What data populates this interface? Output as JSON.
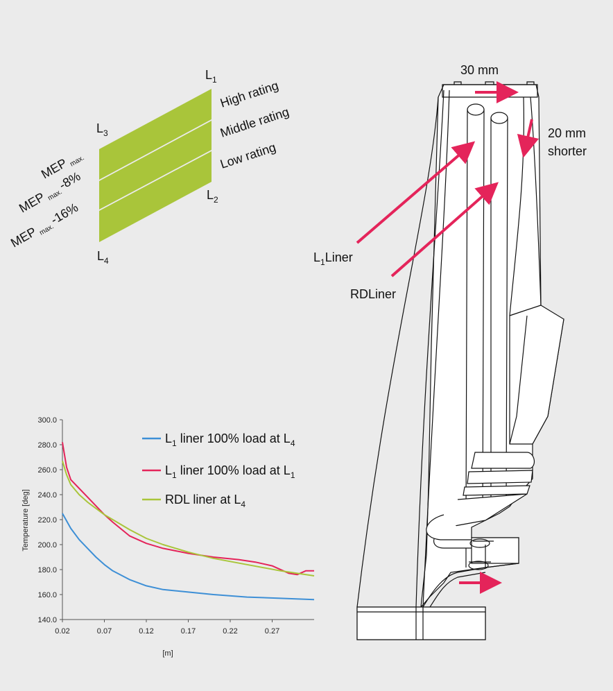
{
  "rating": {
    "corners": {
      "l1": "L",
      "l1_sub": "1",
      "l2": "L",
      "l2_sub": "2",
      "l3": "L",
      "l3_sub": "3",
      "l4": "L",
      "l4_sub": "4"
    },
    "bands": [
      "High rating",
      "Middle rating",
      "Low rating"
    ],
    "mep": [
      {
        "main": "MEP",
        "sub": "max.",
        "suffix": ""
      },
      {
        "main": "MEP",
        "sub": "max.",
        "suffix": "-8%"
      },
      {
        "main": "MEP",
        "sub": "max.",
        "suffix": "-16%"
      }
    ],
    "color": "#a9c53a"
  },
  "engine": {
    "width_label": "30 mm",
    "shorter_label_1": "20 mm",
    "shorter_label_2": "shorter",
    "l1_liner_main": "L",
    "l1_liner_sub": "1",
    "l1_liner_rest": "Liner",
    "rd_liner": "RDLiner",
    "arrow_color": "#e4245a"
  },
  "chart_data": {
    "type": "line",
    "xlabel": "[m]",
    "ylabel": "Temperature [deg]",
    "xlim": [
      0.02,
      0.32
    ],
    "ylim": [
      140,
      300
    ],
    "x_ticks": [
      "0.02",
      "0.07",
      "0.12",
      "0.17",
      "0.22",
      "0.27"
    ],
    "y_ticks": [
      "140.0",
      "160.0",
      "180.0",
      "200.0",
      "220.0",
      "240.0",
      "260.0",
      "280.0",
      "300.0"
    ],
    "legend_position": "top-right",
    "series": [
      {
        "legend_main": "L",
        "legend_sub": "1",
        "legend_mid": " liner 100% load at L",
        "legend_sub2": "4",
        "color": "#3d8fd6",
        "x": [
          0.02,
          0.03,
          0.04,
          0.05,
          0.06,
          0.07,
          0.08,
          0.1,
          0.12,
          0.14,
          0.17,
          0.2,
          0.24,
          0.28,
          0.32
        ],
        "y": [
          225,
          213,
          204,
          197,
          190,
          184,
          179,
          172,
          167,
          164,
          162,
          160,
          158,
          157,
          156
        ]
      },
      {
        "legend_main": "L",
        "legend_sub": "1",
        "legend_mid": " liner 100% load at L",
        "legend_sub2": "1",
        "color": "#e4245a",
        "x": [
          0.02,
          0.025,
          0.03,
          0.04,
          0.05,
          0.06,
          0.07,
          0.08,
          0.1,
          0.12,
          0.14,
          0.17,
          0.2,
          0.23,
          0.25,
          0.27,
          0.29,
          0.3,
          0.31,
          0.32
        ],
        "y": [
          282,
          262,
          252,
          245,
          238,
          231,
          224,
          218,
          207,
          201,
          197,
          193,
          190,
          188,
          186,
          183,
          177,
          176,
          179,
          179
        ]
      },
      {
        "legend_main": "RDL liner at L",
        "legend_sub": "4",
        "legend_mid": "",
        "legend_sub2": "",
        "color": "#a9c53a",
        "x": [
          0.02,
          0.025,
          0.03,
          0.04,
          0.05,
          0.06,
          0.07,
          0.08,
          0.1,
          0.12,
          0.14,
          0.17,
          0.2,
          0.24,
          0.28,
          0.32
        ],
        "y": [
          267,
          256,
          248,
          240,
          234,
          229,
          224,
          220,
          212,
          205,
          200,
          194,
          189,
          184,
          179,
          175
        ]
      }
    ]
  }
}
